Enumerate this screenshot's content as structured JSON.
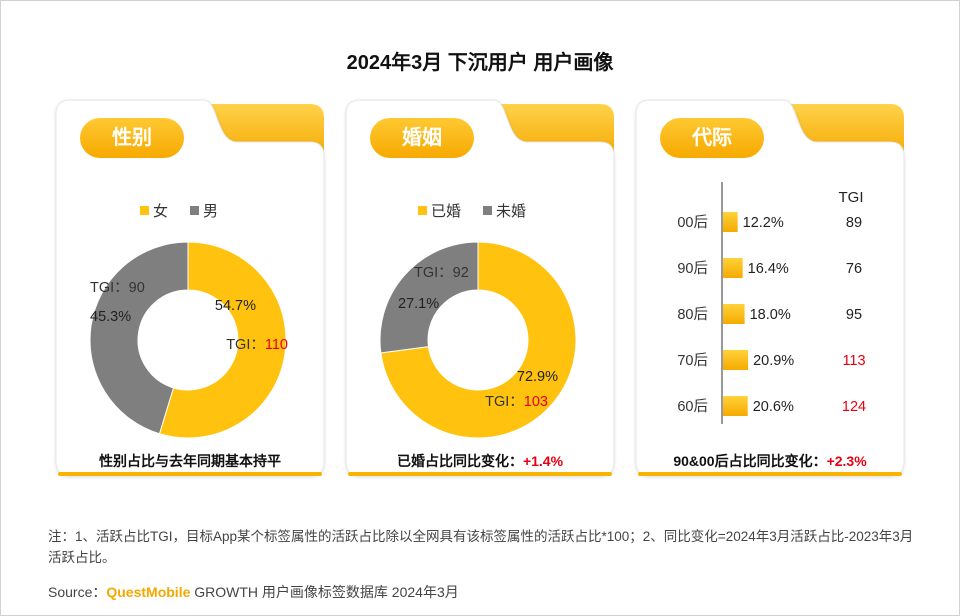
{
  "title": "2024年3月 下沉用户 用户画像",
  "colors": {
    "yellow": "#FFC20E",
    "gray": "#7F7F7F",
    "red": "#E60012"
  },
  "chart_data": [
    {
      "type": "pie",
      "title": "性别",
      "legend": [
        "女",
        "男"
      ],
      "slices": [
        {
          "label": "女",
          "value": 54.7,
          "value_text": "54.7%",
          "tgi_label": "TGI：",
          "tgi": "110",
          "tgi_highlight": true
        },
        {
          "label": "男",
          "value": 45.3,
          "value_text": "45.3%",
          "tgi_label": "TGI：",
          "tgi": "90",
          "tgi_highlight": false
        }
      ],
      "footer": {
        "text": "性别占比与去年同期基本持平",
        "highlight": ""
      }
    },
    {
      "type": "pie",
      "title": "婚姻",
      "legend": [
        "已婚",
        "未婚"
      ],
      "slices": [
        {
          "label": "已婚",
          "value": 72.9,
          "value_text": "72.9%",
          "tgi_label": "TGI：",
          "tgi": "103",
          "tgi_highlight": true
        },
        {
          "label": "未婚",
          "value": 27.1,
          "value_text": "27.1%",
          "tgi_label": "TGI：",
          "tgi": "92",
          "tgi_highlight": false
        }
      ],
      "footer": {
        "text": "已婚占比同比变化：",
        "highlight": "+1.4%"
      }
    },
    {
      "type": "bar",
      "title": "代际",
      "tgi_header": "TGI",
      "categories": [
        "00后",
        "90后",
        "80后",
        "70后",
        "60后"
      ],
      "values": [
        12.2,
        16.4,
        18.0,
        20.9,
        20.6
      ],
      "value_texts": [
        "12.2%",
        "16.4%",
        "18.0%",
        "20.9%",
        "20.6%"
      ],
      "tgi": [
        "89",
        "76",
        "95",
        "113",
        "124"
      ],
      "tgi_highlight": [
        false,
        false,
        false,
        true,
        true
      ],
      "footer": {
        "text": "90&00后占比同比变化：",
        "highlight": "+2.3%"
      }
    }
  ],
  "note": "注：1、活跃占比TGI，目标App某个标签属性的活跃占比除以全网具有该标签属性的活跃占比*100；2、同比变化=2024年3月活跃占比-2023年3月活跃占比。",
  "source": {
    "prefix": "Source：",
    "brand": "QuestMobile",
    "rest": " GROWTH 用户画像标签数据库 2024年3月"
  }
}
